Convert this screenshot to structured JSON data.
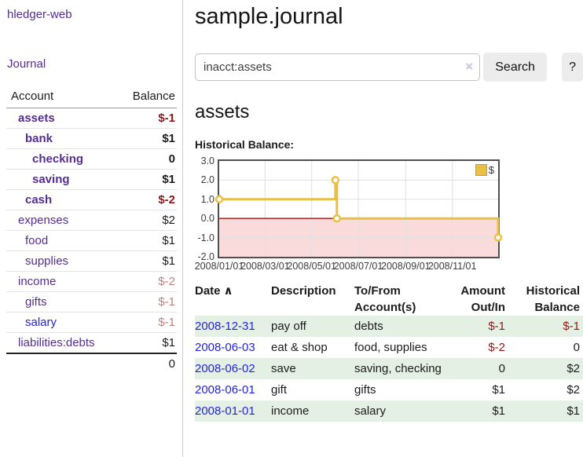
{
  "colors": {
    "purple": "#552d90",
    "blue": "#2323dd",
    "negStrong": "#8f1616",
    "negSoft": "#bf7f7f",
    "rowGreen": "#e4f0e4",
    "chartLine": "#e9c044",
    "zeroLine": "#a51111",
    "negRegion": "#fadbdb",
    "grid": "#e0e0e0"
  },
  "sidebar": {
    "app_title": "hledger-web",
    "nav": {
      "journal": "Journal"
    },
    "accounts_table": {
      "headers": {
        "account": "Account",
        "balance": "Balance"
      },
      "rows": [
        {
          "name": "assets",
          "balance": "$-1",
          "indent": 1,
          "bold": true,
          "neg": "strong"
        },
        {
          "name": "bank",
          "balance": "$1",
          "indent": 2,
          "bold": true
        },
        {
          "name": "checking",
          "balance": "0",
          "indent": 3,
          "bold": true
        },
        {
          "name": "saving",
          "balance": "$1",
          "indent": 3,
          "bold": true
        },
        {
          "name": "cash",
          "balance": "$-2",
          "indent": 2,
          "bold": true,
          "neg": "strong"
        },
        {
          "name": "expenses",
          "balance": "$2",
          "indent": 1
        },
        {
          "name": "food",
          "balance": "$1",
          "indent": 2
        },
        {
          "name": "supplies",
          "balance": "$1",
          "indent": 2
        },
        {
          "name": "income",
          "balance": "$-2",
          "indent": 1,
          "neg": "soft"
        },
        {
          "name": "gifts",
          "balance": "$-1",
          "indent": 2,
          "neg": "soft"
        },
        {
          "name": "salary",
          "balance": "$-1",
          "indent": 2,
          "neg": "soft",
          "blue_link": true
        },
        {
          "name": "liabilities:debts",
          "balance": "$1",
          "indent": 1
        }
      ],
      "total": "0"
    }
  },
  "header": {
    "title": "sample.journal"
  },
  "search": {
    "value": "inacct:assets",
    "clear_icon": "×",
    "button": "Search",
    "help_button": "?"
  },
  "account_page": {
    "heading": "assets",
    "chart_label": "Historical Balance:"
  },
  "chart_data": {
    "type": "line",
    "step": true,
    "title": "Historical Balance:",
    "series": [
      {
        "name": "$",
        "color": "#e9c044",
        "points": [
          [
            "2008-01-01",
            1
          ],
          [
            "2008-06-01",
            2
          ],
          [
            "2008-06-03",
            0
          ],
          [
            "2008-12-31",
            -1
          ]
        ]
      }
    ],
    "x_range": [
      "2008-01-01",
      "2008-12-31"
    ],
    "ylim": [
      -2,
      3
    ],
    "y_ticks": [
      "3.0",
      "2.0",
      "1.0",
      "0.0",
      "-1.0",
      "-2.0"
    ],
    "x_ticks": [
      {
        "date": "2008-01-01",
        "label": "2008/01/01"
      },
      {
        "date": "2008-03-01",
        "label": "2008/03/01"
      },
      {
        "date": "2008-05-01",
        "label": "2008/05/01"
      },
      {
        "date": "2008-07-01",
        "label": "2008/07/01"
      },
      {
        "date": "2008-09-01",
        "label": "2008/09/01"
      },
      {
        "date": "2008-11-01",
        "label": "2008/11/01"
      }
    ],
    "legend": {
      "label": "$",
      "position": "top-right"
    },
    "grid": true,
    "negative_region_shaded": true
  },
  "register": {
    "sort_icon": "∧",
    "headers": {
      "date": "Date",
      "description": "Description",
      "accounts": "To/From Account(s)",
      "amount": "Amount Out/In",
      "balance": "Historical Balance"
    },
    "rows": [
      {
        "date": "2008-12-31",
        "description": "pay off",
        "accounts": "debts",
        "amount": "$-1",
        "balance": "$-1"
      },
      {
        "date": "2008-06-03",
        "description": "eat & shop",
        "accounts": "food, supplies",
        "amount": "$-2",
        "balance": "0"
      },
      {
        "date": "2008-06-02",
        "description": "save",
        "accounts": "saving, checking",
        "amount": "0",
        "balance": "$2"
      },
      {
        "date": "2008-06-01",
        "description": "gift",
        "accounts": "gifts",
        "amount": "$1",
        "balance": "$2"
      },
      {
        "date": "2008-01-01",
        "description": "income",
        "accounts": "salary",
        "amount": "$1",
        "balance": "$1"
      }
    ]
  }
}
